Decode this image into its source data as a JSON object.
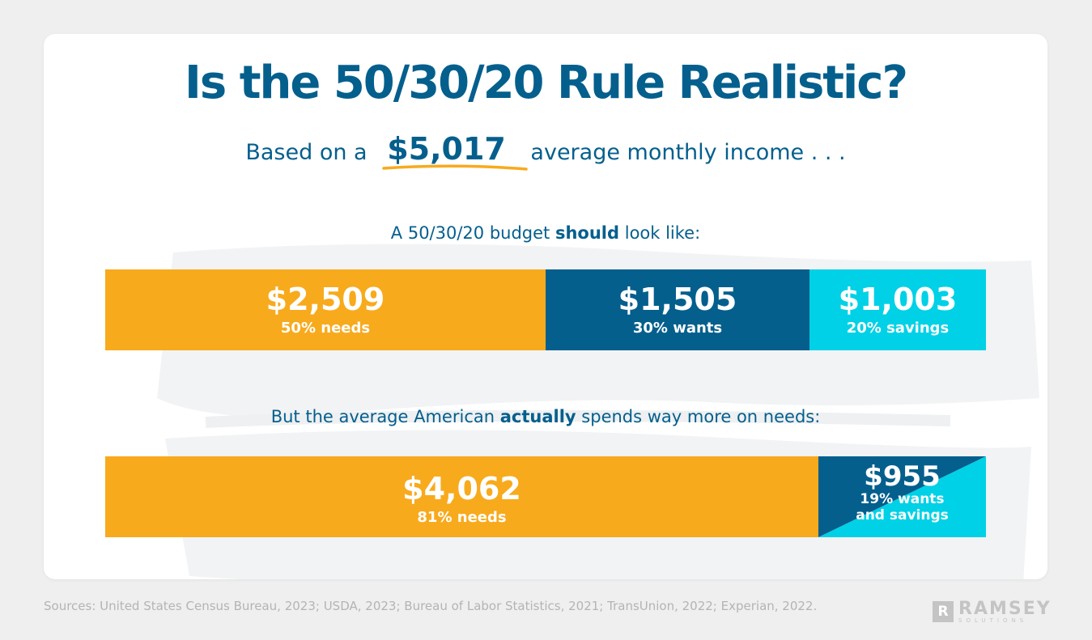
{
  "title": "Is the 50/30/20 Rule Realistic?",
  "subtitle": {
    "prefix": "Based on a",
    "amount": "$5,017",
    "suffix": "average monthly income . . ."
  },
  "section_should": {
    "before": "A 50/30/20 budget",
    "bold": "should",
    "after": "look like:"
  },
  "section_actual": {
    "before": "But the average American",
    "bold": "actually",
    "after": "spends way more on needs:"
  },
  "sources": "Sources: United States Census Bureau, 2023; USDA, 2023; Bureau of Labor Statistics, 2021; TransUnion, 2022; Experian, 2022.",
  "logo": {
    "mark": "R",
    "name": "RAMSEY",
    "sub": "SOLUTIONS"
  },
  "colors": {
    "needs": "#f8aa1d",
    "wants": "#045f8d",
    "savings": "#00d1e6",
    "title": "#045f8d"
  },
  "chart_data": [
    {
      "type": "bar",
      "orientation": "horizontal-stacked",
      "total": 5017,
      "segments": [
        {
          "value": 2509,
          "label": "$2,509",
          "caption": "50% needs",
          "percent": 50,
          "color": "#f8aa1d"
        },
        {
          "value": 1505,
          "label": "$1,505",
          "caption": "30% wants",
          "percent": 30,
          "color": "#045f8d"
        },
        {
          "value": 1003,
          "label": "$1,003",
          "caption": "20% savings",
          "percent": 20,
          "color": "#00d1e6"
        }
      ]
    },
    {
      "type": "bar",
      "orientation": "horizontal-stacked",
      "total": 5017,
      "segments": [
        {
          "value": 4062,
          "label": "$4,062",
          "caption": "81% needs",
          "percent": 81,
          "color": "#f8aa1d"
        },
        {
          "value": 955,
          "label": "$955",
          "caption_lines": [
            "19% wants",
            "and savings"
          ],
          "percent": 19,
          "colors": [
            "#045f8d",
            "#00d1e6"
          ]
        }
      ]
    }
  ]
}
